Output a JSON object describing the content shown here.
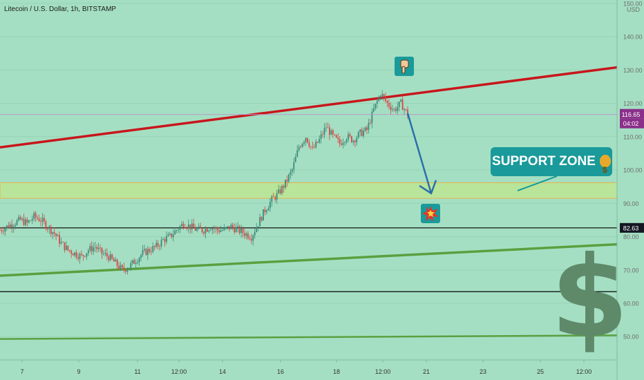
{
  "chart_data": {
    "type": "line",
    "title": "Litecoin / U.S. Dollar, 1h, BITSTAMP",
    "currency": "USD",
    "ylim": [
      43,
      151
    ],
    "y_ticks": [
      50,
      60,
      70,
      80,
      90,
      100,
      110,
      120,
      130,
      140,
      150
    ],
    "x_ticks": [
      "7",
      "9",
      "11",
      "12:00",
      "14",
      "16",
      "18",
      "12:00",
      "21",
      "23",
      "25",
      "12:00"
    ],
    "series": [
      {
        "y": [
          82,
          83,
          84,
          85,
          84,
          86,
          85,
          83,
          81,
          78,
          76,
          75,
          74,
          76,
          77,
          75,
          74,
          72,
          70,
          71,
          73,
          75,
          76,
          77,
          79,
          80,
          82,
          84,
          83,
          82,
          82,
          83,
          82,
          82,
          83,
          82,
          81,
          80,
          84,
          88,
          91,
          93,
          96,
          100,
          107,
          110,
          106,
          109,
          113,
          110,
          108,
          110,
          109,
          111,
          112,
          118,
          123,
          120,
          118,
          120,
          116.65
        ]
      }
    ],
    "levels": {
      "current_price": "116.65",
      "countdown": "04:02",
      "horizontal_line": "82.63",
      "support_zone": [
        91.5,
        96.2
      ],
      "lower_black_line": 63.5
    },
    "trendlines": {
      "upper_red": [
        [
          0,
          106.8
        ],
        [
          1,
          130.8
        ]
      ],
      "middle_green": [
        [
          0,
          68.3
        ],
        [
          1,
          77.7
        ]
      ],
      "lower_green": [
        [
          0,
          49.3
        ],
        [
          1,
          50.4
        ]
      ]
    },
    "projection": {
      "from": 117,
      "to": 93
    },
    "colors": {
      "background": "#a5dfc3",
      "candle_up": "#3a8a7a",
      "candle_down": "#d94545",
      "red_trend": "#c8161c",
      "green_trend": "#5aa040",
      "support_fill": "#b8e59a",
      "support_border": "#e6b24a",
      "arrow": "#2b6faa",
      "price_label": "#8a2f8a",
      "dark_label": "#131722"
    },
    "annotations": {
      "support_label": "SUPPORT ZONE",
      "icons": [
        "pointing-down-hand-icon",
        "collision-icon",
        "money-bag-icon",
        "dollar-sign-icon"
      ]
    }
  }
}
